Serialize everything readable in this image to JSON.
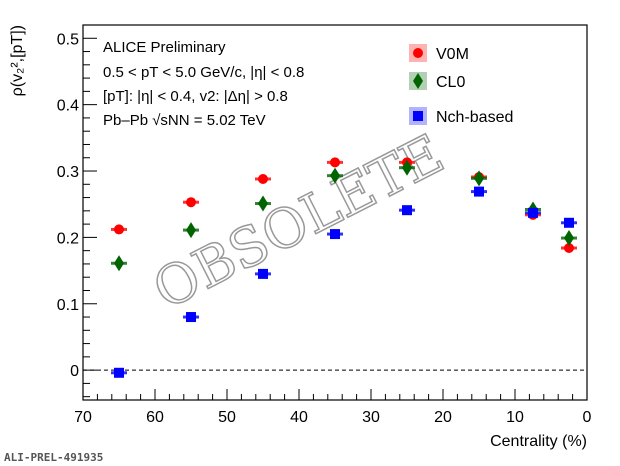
{
  "chart_data": {
    "type": "scatter",
    "title": "",
    "xlabel": "Centrality (%)",
    "ylabel": "ρ(v₂²,[pT])",
    "xlim": [
      70,
      0
    ],
    "ylim": [
      -0.045,
      0.52
    ],
    "xticks": [
      "70",
      "60",
      "50",
      "40",
      "30",
      "20",
      "10",
      "0"
    ],
    "xtick_values": [
      70,
      60,
      50,
      40,
      30,
      20,
      10,
      0
    ],
    "yticks": [
      "0",
      "0.1",
      "0.2",
      "0.3",
      "0.4",
      "0.5"
    ],
    "ytick_values": [
      0,
      0.1,
      0.2,
      0.3,
      0.4,
      0.5
    ],
    "legend_position": "top-right",
    "annotations": [
      "ALICE Preliminary",
      "0.5 < pT < 5.0 GeV/c, |η| < 0.8",
      "[pT]: |η| < 0.4, v2: |Δη| > 0.8",
      "Pb–Pb √sNN = 5.02 TeV"
    ],
    "watermark": "OBSOLETE",
    "footer": "ALI-PREL-491935",
    "series": [
      {
        "name": "V0M",
        "color": "#ff0000",
        "marker": "circle",
        "x": [
          65,
          55,
          45,
          35,
          25,
          15,
          7.5,
          2.5
        ],
        "values": [
          0.212,
          0.253,
          0.288,
          0.313,
          0.313,
          0.291,
          0.234,
          0.184
        ]
      },
      {
        "name": "CL0",
        "color": "#006400",
        "marker": "diamond",
        "x": [
          65,
          55,
          45,
          35,
          25,
          15,
          7.5,
          2.5
        ],
        "values": [
          0.161,
          0.211,
          0.251,
          0.293,
          0.305,
          0.289,
          0.242,
          0.199
        ]
      },
      {
        "name": "Nch-based",
        "color": "#0000ff",
        "marker": "square",
        "x": [
          65,
          55,
          45,
          35,
          25,
          15,
          7.5,
          2.5
        ],
        "values": [
          -0.004,
          0.08,
          0.145,
          0.205,
          0.241,
          0.269,
          0.237,
          0.222
        ]
      }
    ]
  }
}
